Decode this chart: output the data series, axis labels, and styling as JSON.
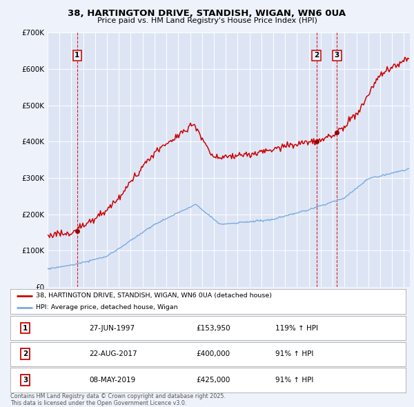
{
  "title": "38, HARTINGTON DRIVE, STANDISH, WIGAN, WN6 0UA",
  "subtitle": "Price paid vs. HM Land Registry's House Price Index (HPI)",
  "legend_label_red": "38, HARTINGTON DRIVE, STANDISH, WIGAN, WN6 0UA (detached house)",
  "legend_label_blue": "HPI: Average price, detached house, Wigan",
  "sale_points": [
    {
      "num": 1,
      "date": "27-JUN-1997",
      "price": 153950,
      "hpi_pct": "119% ↑ HPI",
      "x": 1997.49
    },
    {
      "num": 2,
      "date": "22-AUG-2017",
      "price": 400000,
      "hpi_pct": "91% ↑ HPI",
      "x": 2017.64
    },
    {
      "num": 3,
      "date": "08-MAY-2019",
      "price": 425000,
      "hpi_pct": "91% ↑ HPI",
      "x": 2019.36
    }
  ],
  "dashed_line_color": "#cc0000",
  "footnote": "Contains HM Land Registry data © Crown copyright and database right 2025.\nThis data is licensed under the Open Government Licence v3.0.",
  "ylim": [
    0,
    700000
  ],
  "xlim": [
    1995.0,
    2025.5
  ],
  "bg_color": "#eef2fa",
  "plot_bg_color": "#dde5f5",
  "red_color": "#cc0000",
  "blue_color": "#7aaadd",
  "sale_dot_color": "#990000"
}
